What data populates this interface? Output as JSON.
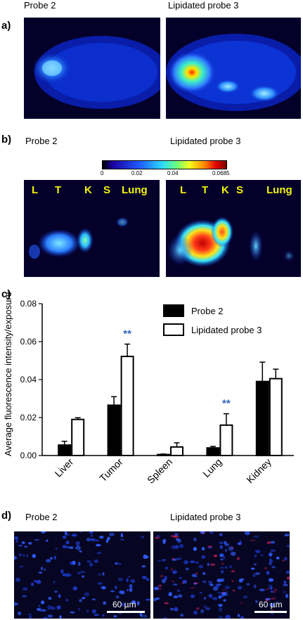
{
  "panel_a": {
    "letter": "a)",
    "left_title": "Probe 2",
    "right_title": "Lipidated probe 3"
  },
  "panel_b": {
    "letter": "b)",
    "left_title": "Probe 2",
    "right_title": "Lipidated probe 3",
    "colorbar_ticks": [
      "0",
      "0.02",
      "0.04",
      "0.0685"
    ],
    "left_organs": [
      "L",
      "T",
      "K",
      "S",
      "Lung"
    ],
    "right_organs": [
      "L",
      "T",
      "K",
      "S",
      "Lung"
    ]
  },
  "panel_d": {
    "letter": "d)",
    "left_title": "Probe 2",
    "right_title": "Lipidated probe 3",
    "scale_left": "60 µm",
    "scale_right": "60 µm"
  },
  "chart_data": {
    "letter": "c)",
    "type": "bar",
    "ylabel": "Average fluorescence intensity/exposure",
    "ylim": [
      0,
      0.08
    ],
    "yticks": [
      "0.00",
      "0.02",
      "0.04",
      "0.06",
      "0.08"
    ],
    "categories": [
      "Liver",
      "Tumor",
      "Spleen",
      "Lung",
      "Kidney"
    ],
    "series": [
      {
        "name": "Probe 2",
        "color": "#000000",
        "values": [
          0.0055,
          0.0265,
          0.0005,
          0.004,
          0.039
        ],
        "errors": [
          0.002,
          0.0045,
          0.0003,
          0.0008,
          0.0102
        ]
      },
      {
        "name": "Lipidated probe 3",
        "color": "#ffffff",
        "values": [
          0.019,
          0.0522,
          0.0045,
          0.016,
          0.0405
        ],
        "errors": [
          0.0009,
          0.0065,
          0.0022,
          0.006,
          0.005
        ]
      }
    ],
    "annotations": [
      {
        "category": "Tumor",
        "text": "**"
      },
      {
        "category": "Lung",
        "text": "**"
      }
    ],
    "annotation_color": "#2f63b4",
    "legend_position": "top-right"
  }
}
